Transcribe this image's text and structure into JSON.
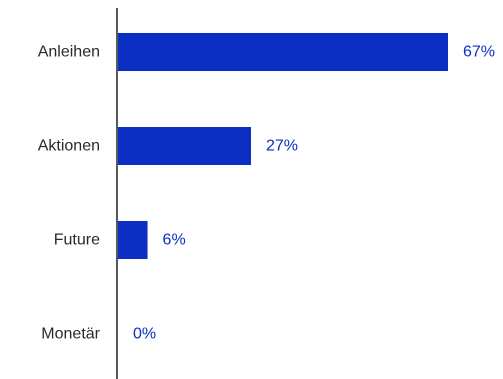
{
  "chart_data": {
    "type": "bar",
    "orientation": "horizontal",
    "categories": [
      "Anleihen",
      "Aktionen",
      "Future",
      "Monetär"
    ],
    "values": [
      67,
      27,
      6,
      0
    ],
    "value_labels": [
      "67%",
      "27%",
      "6%",
      "0%"
    ],
    "unit": "%",
    "xlim": [
      0,
      67
    ],
    "grid": false,
    "legend": "none",
    "bar_color": "#0a2fc2",
    "label_color": "#0a2fc2"
  }
}
